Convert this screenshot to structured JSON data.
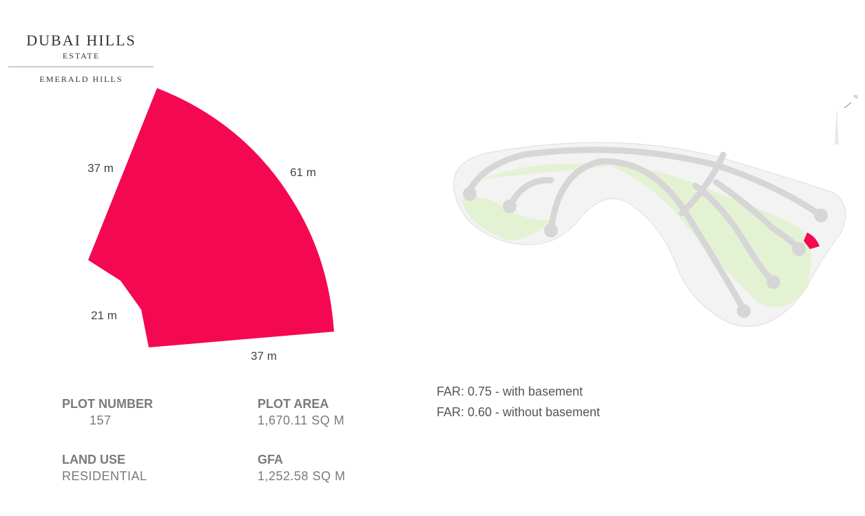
{
  "header": {
    "brand": "DUBAI HILLS",
    "sub": "ESTATE",
    "community": "EMERALD HILLS"
  },
  "plot": {
    "sides": [
      "37 m",
      "61 m",
      "21 m",
      "37 m"
    ]
  },
  "info": [
    {
      "label": "PLOT NUMBER",
      "value": "157"
    },
    {
      "label": "PLOT AREA",
      "value": "1,670.11 SQ M"
    },
    {
      "label": "LAND USE",
      "value": "RESIDENTIAL"
    },
    {
      "label": "GFA",
      "value": "1,252.58 SQ M"
    }
  ],
  "far": [
    "FAR: 0.75 - with basement",
    "FAR: 0.60 - without basement"
  ],
  "compass": "N"
}
